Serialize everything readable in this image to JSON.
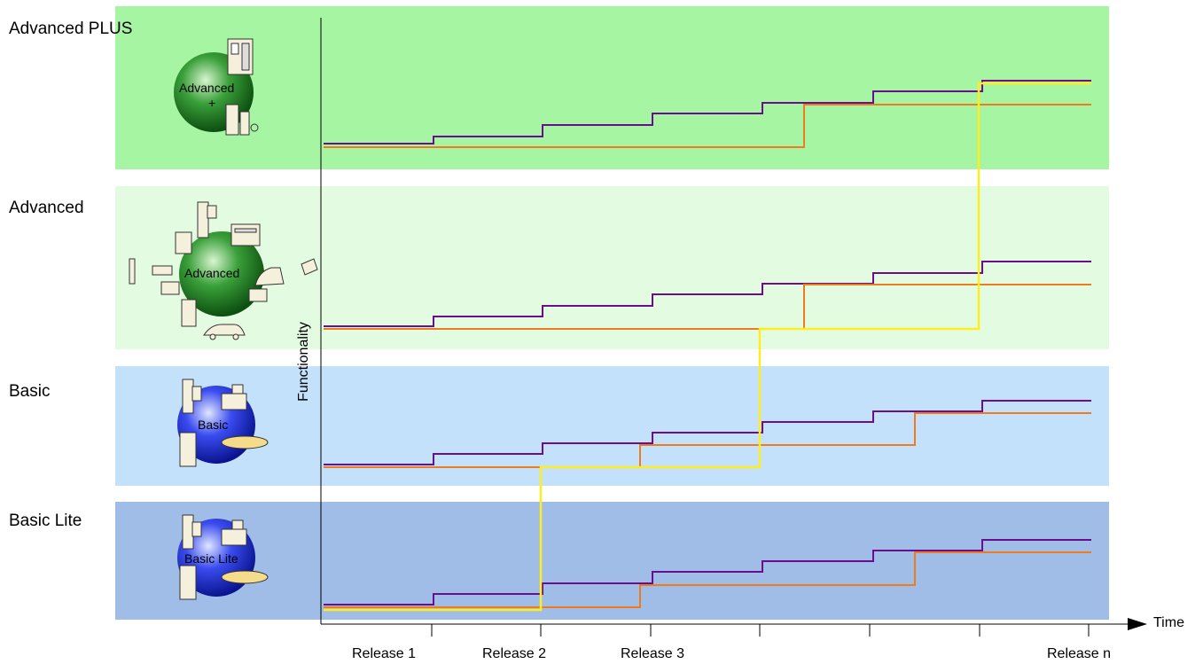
{
  "colors": {
    "advanced_plus": "#a6f5a2",
    "advanced": "#e3fbe0",
    "basic": "#c4e1fb",
    "basic_lite": "#9fbde6",
    "line_purple": "#6a0d8f",
    "line_orange": "#f07a1e",
    "line_yellow": "#ffee1e"
  },
  "bands": {
    "advanced_plus": {
      "label": "Advanced PLUS",
      "badge_lines": [
        "Advanced",
        "+"
      ]
    },
    "advanced": {
      "label": "Advanced",
      "badge_text": "Advanced"
    },
    "basic": {
      "label": "Basic",
      "badge_text": "Basic"
    },
    "basic_lite": {
      "label": "Basic Lite",
      "badge_text": "Basic Lite"
    }
  },
  "axes": {
    "y_title": "Functionality",
    "x_title": "Time",
    "tick_labels": [
      "Release 1",
      "Release 2",
      "Release 3",
      "Release n"
    ]
  },
  "icons": [
    "gas-pump-icon",
    "car-icon",
    "car-wash-icon",
    "cash-register-icon",
    "receipt-icon",
    "fuel-nozzle-icon",
    "pos-terminal-icon",
    "card-reader-icon"
  ]
}
